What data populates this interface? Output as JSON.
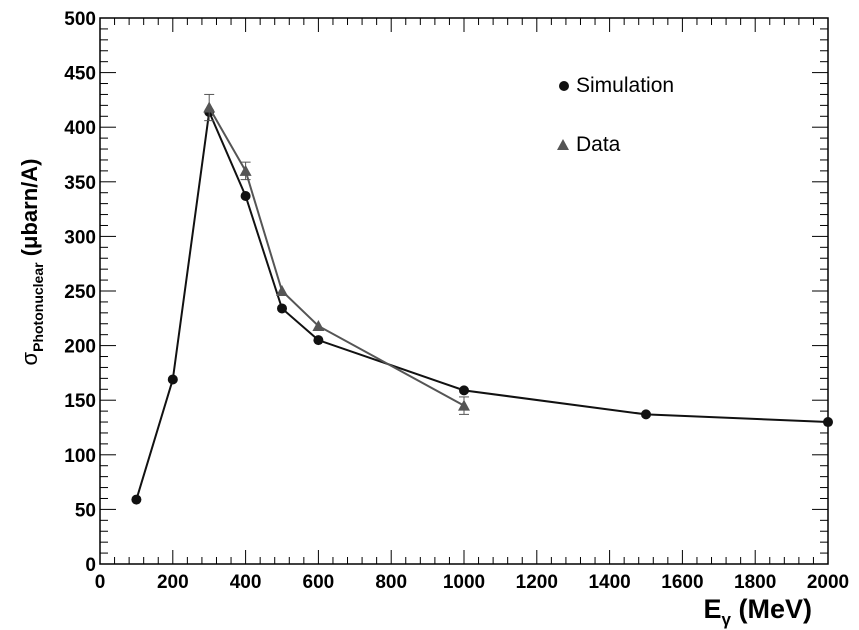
{
  "chart_data": {
    "type": "line",
    "xlabel": {
      "main": "E",
      "sub": "γ",
      "unit": " (MeV)"
    },
    "ylabel": {
      "main": "σ",
      "sub": "Photonuclear",
      "unit": " (μbarn/A)"
    },
    "xlim": [
      0,
      2000
    ],
    "ylim": [
      0,
      500
    ],
    "x_ticks": [
      "0",
      "200",
      "400",
      "600",
      "800",
      "1000",
      "1200",
      "1400",
      "1600",
      "1800",
      "2000"
    ],
    "y_ticks": [
      "0",
      "50",
      "100",
      "150",
      "200",
      "250",
      "300",
      "350",
      "400",
      "450",
      "500"
    ],
    "grid": false,
    "legend_position": "top-right",
    "series": [
      {
        "name": "Simulation",
        "marker": "circle",
        "color": "#111111",
        "x": [
          100,
          200,
          300,
          400,
          500,
          600,
          1000,
          1500,
          2000
        ],
        "y": [
          59,
          169,
          414,
          337,
          234,
          205,
          159,
          137,
          130
        ]
      },
      {
        "name": "Data",
        "marker": "triangle",
        "color": "#555555",
        "x": [
          300,
          400,
          500,
          600,
          1000
        ],
        "y": [
          418,
          360,
          250,
          218,
          145
        ],
        "err": [
          12,
          8,
          0,
          0,
          8
        ]
      }
    ]
  }
}
